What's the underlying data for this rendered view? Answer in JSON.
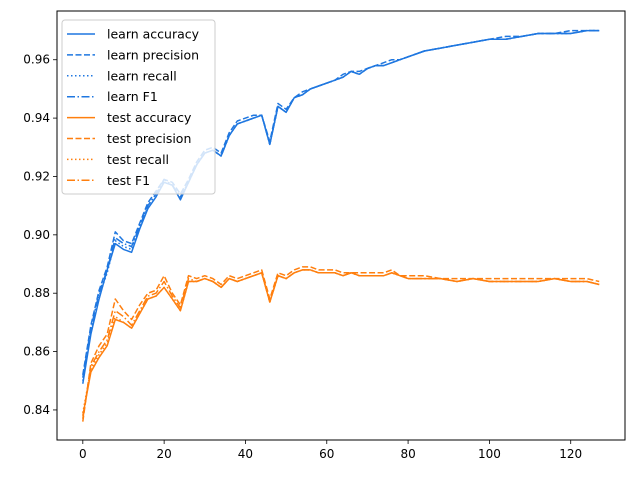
{
  "chart_data": {
    "type": "line",
    "title": "",
    "xlabel": "",
    "ylabel": "",
    "xlim": [
      -6.35,
      133.35
    ],
    "ylim": [
      0.8297,
      0.9767
    ],
    "xticks": [
      0,
      20,
      40,
      60,
      80,
      100,
      120
    ],
    "yticks": [
      0.84,
      0.86,
      0.88,
      0.9,
      0.92,
      0.94,
      0.96
    ],
    "ytick_labels": [
      "0.84",
      "0.86",
      "0.88",
      "0.90",
      "0.92",
      "0.94",
      "0.96"
    ],
    "grid": false,
    "legend_position": "top-left",
    "colors": {
      "learn": "#1f77e0",
      "test": "#ff7f0e"
    },
    "x": [
      0,
      2,
      4,
      6,
      8,
      10,
      12,
      14,
      16,
      18,
      20,
      22,
      24,
      26,
      28,
      30,
      32,
      34,
      36,
      38,
      40,
      42,
      44,
      46,
      48,
      50,
      52,
      54,
      56,
      58,
      60,
      62,
      64,
      66,
      68,
      70,
      72,
      74,
      76,
      78,
      80,
      84,
      88,
      92,
      96,
      100,
      104,
      108,
      112,
      116,
      120,
      124,
      127
    ],
    "series": [
      {
        "name": "learn accuracy",
        "group": "learn",
        "dash": "solid",
        "values": [
          0.849,
          0.866,
          0.878,
          0.888,
          0.897,
          0.895,
          0.894,
          0.902,
          0.909,
          0.913,
          0.918,
          0.917,
          0.912,
          0.918,
          0.924,
          0.928,
          0.929,
          0.927,
          0.934,
          0.938,
          0.939,
          0.94,
          0.941,
          0.931,
          0.944,
          0.942,
          0.947,
          0.948,
          0.95,
          0.951,
          0.952,
          0.953,
          0.954,
          0.956,
          0.955,
          0.957,
          0.958,
          0.958,
          0.959,
          0.96,
          0.961,
          0.963,
          0.964,
          0.965,
          0.966,
          0.967,
          0.967,
          0.968,
          0.969,
          0.969,
          0.969,
          0.97,
          0.97
        ]
      },
      {
        "name": "learn precision",
        "group": "learn",
        "dash": "dashed",
        "values": [
          0.852,
          0.869,
          0.881,
          0.889,
          0.901,
          0.898,
          0.897,
          0.904,
          0.911,
          0.915,
          0.919,
          0.918,
          0.914,
          0.919,
          0.925,
          0.929,
          0.93,
          0.928,
          0.935,
          0.939,
          0.94,
          0.941,
          0.941,
          0.932,
          0.945,
          0.943,
          0.947,
          0.949,
          0.95,
          0.951,
          0.952,
          0.953,
          0.955,
          0.956,
          0.956,
          0.957,
          0.958,
          0.959,
          0.96,
          0.96,
          0.961,
          0.963,
          0.964,
          0.965,
          0.966,
          0.967,
          0.968,
          0.968,
          0.969,
          0.969,
          0.97,
          0.97,
          0.97
        ]
      },
      {
        "name": "learn recall",
        "group": "learn",
        "dash": "dotted",
        "values": [
          0.85,
          0.867,
          0.879,
          0.887,
          0.898,
          0.896,
          0.895,
          0.903,
          0.91,
          0.914,
          0.918,
          0.917,
          0.913,
          0.918,
          0.924,
          0.928,
          0.929,
          0.927,
          0.934,
          0.938,
          0.939,
          0.94,
          0.941,
          0.931,
          0.944,
          0.942,
          0.947,
          0.948,
          0.95,
          0.951,
          0.952,
          0.953,
          0.954,
          0.956,
          0.955,
          0.957,
          0.958,
          0.958,
          0.959,
          0.96,
          0.961,
          0.963,
          0.964,
          0.965,
          0.966,
          0.967,
          0.967,
          0.968,
          0.969,
          0.969,
          0.969,
          0.97,
          0.97
        ]
      },
      {
        "name": "learn F1",
        "group": "learn",
        "dash": "dashdot",
        "values": [
          0.851,
          0.868,
          0.88,
          0.888,
          0.899,
          0.897,
          0.896,
          0.903,
          0.91,
          0.914,
          0.919,
          0.917,
          0.913,
          0.918,
          0.924,
          0.928,
          0.929,
          0.927,
          0.934,
          0.938,
          0.939,
          0.94,
          0.941,
          0.931,
          0.944,
          0.942,
          0.947,
          0.948,
          0.95,
          0.951,
          0.952,
          0.953,
          0.954,
          0.956,
          0.955,
          0.957,
          0.958,
          0.958,
          0.959,
          0.96,
          0.961,
          0.963,
          0.964,
          0.965,
          0.966,
          0.967,
          0.967,
          0.968,
          0.969,
          0.969,
          0.969,
          0.97,
          0.97
        ]
      },
      {
        "name": "test accuracy",
        "group": "test",
        "dash": "solid",
        "values": [
          0.838,
          0.853,
          0.858,
          0.862,
          0.871,
          0.87,
          0.868,
          0.873,
          0.878,
          0.879,
          0.882,
          0.878,
          0.874,
          0.884,
          0.884,
          0.885,
          0.884,
          0.882,
          0.885,
          0.884,
          0.885,
          0.886,
          0.887,
          0.877,
          0.886,
          0.885,
          0.887,
          0.888,
          0.888,
          0.887,
          0.887,
          0.887,
          0.886,
          0.887,
          0.886,
          0.886,
          0.886,
          0.886,
          0.887,
          0.886,
          0.885,
          0.885,
          0.885,
          0.884,
          0.885,
          0.884,
          0.884,
          0.884,
          0.884,
          0.885,
          0.884,
          0.884,
          0.883
        ]
      },
      {
        "name": "test precision",
        "group": "test",
        "dash": "dashed",
        "values": [
          0.836,
          0.856,
          0.862,
          0.866,
          0.878,
          0.874,
          0.871,
          0.876,
          0.88,
          0.881,
          0.886,
          0.88,
          0.876,
          0.886,
          0.885,
          0.886,
          0.885,
          0.883,
          0.886,
          0.885,
          0.886,
          0.887,
          0.888,
          0.878,
          0.887,
          0.886,
          0.888,
          0.889,
          0.889,
          0.888,
          0.888,
          0.888,
          0.887,
          0.887,
          0.887,
          0.887,
          0.887,
          0.887,
          0.888,
          0.886,
          0.886,
          0.886,
          0.885,
          0.885,
          0.885,
          0.885,
          0.885,
          0.885,
          0.885,
          0.885,
          0.885,
          0.885,
          0.884
        ]
      },
      {
        "name": "test recall",
        "group": "test",
        "dash": "dotted",
        "values": [
          0.839,
          0.854,
          0.859,
          0.863,
          0.872,
          0.87,
          0.868,
          0.873,
          0.878,
          0.879,
          0.882,
          0.878,
          0.874,
          0.884,
          0.884,
          0.885,
          0.884,
          0.882,
          0.885,
          0.884,
          0.885,
          0.886,
          0.887,
          0.877,
          0.886,
          0.885,
          0.887,
          0.888,
          0.888,
          0.887,
          0.887,
          0.887,
          0.886,
          0.887,
          0.886,
          0.886,
          0.886,
          0.886,
          0.887,
          0.886,
          0.885,
          0.885,
          0.885,
          0.884,
          0.885,
          0.884,
          0.884,
          0.884,
          0.884,
          0.885,
          0.884,
          0.884,
          0.883
        ]
      },
      {
        "name": "test F1",
        "group": "test",
        "dash": "dashdot",
        "values": [
          0.837,
          0.855,
          0.86,
          0.864,
          0.874,
          0.872,
          0.869,
          0.874,
          0.879,
          0.88,
          0.884,
          0.879,
          0.875,
          0.885,
          0.884,
          0.885,
          0.884,
          0.882,
          0.885,
          0.884,
          0.885,
          0.886,
          0.887,
          0.877,
          0.886,
          0.885,
          0.887,
          0.888,
          0.888,
          0.887,
          0.887,
          0.887,
          0.886,
          0.887,
          0.886,
          0.886,
          0.886,
          0.886,
          0.887,
          0.886,
          0.885,
          0.885,
          0.885,
          0.884,
          0.885,
          0.884,
          0.884,
          0.884,
          0.884,
          0.885,
          0.884,
          0.884,
          0.883
        ]
      }
    ]
  }
}
